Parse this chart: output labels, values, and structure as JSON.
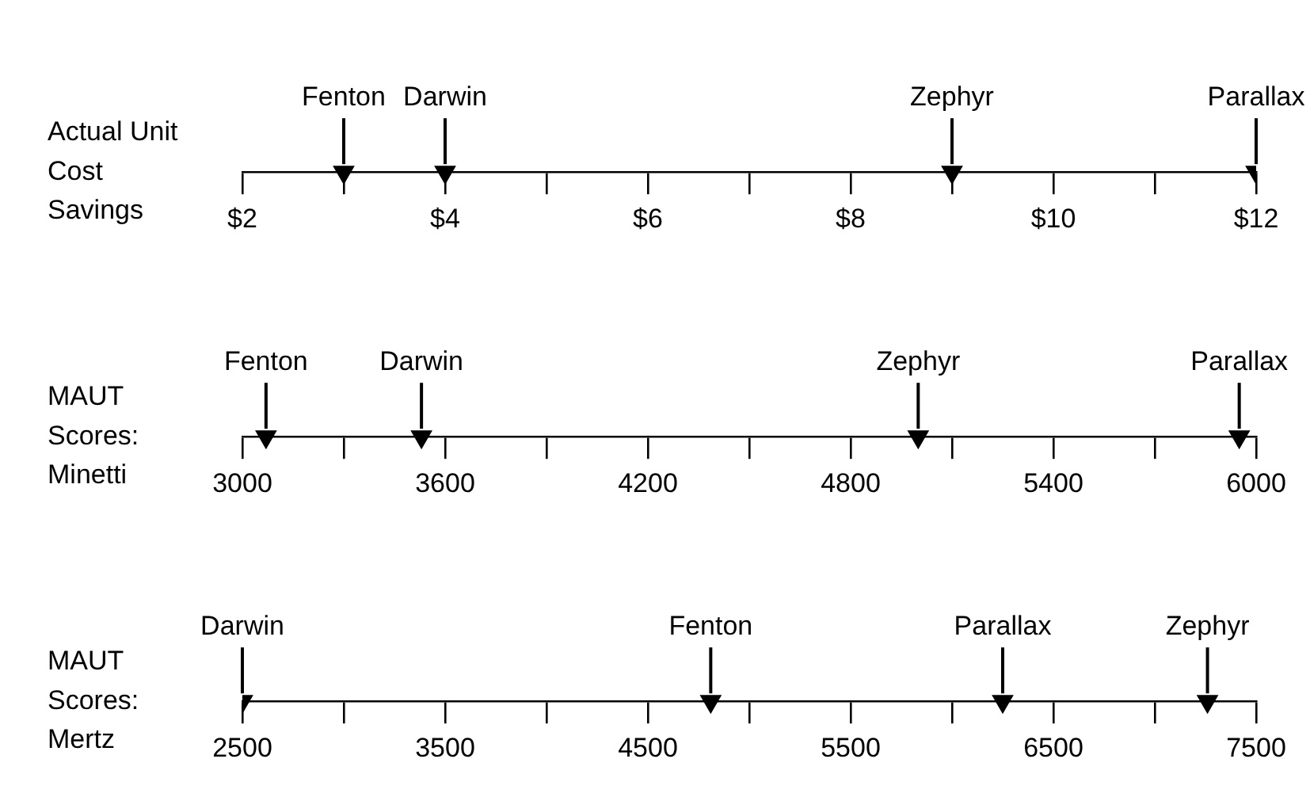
{
  "chart_data": [
    {
      "type": "scatter",
      "orientation": "horizontal",
      "categories": [
        "Actual Unit Cost Savings"
      ],
      "marker": "triangle",
      "legend": false,
      "xlim": [
        2,
        12
      ],
      "xticks": [
        {
          "value": 2,
          "label": "$2"
        },
        {
          "value": 3,
          "label": null
        },
        {
          "value": 4,
          "label": "$4"
        },
        {
          "value": 5,
          "label": null
        },
        {
          "value": 6,
          "label": "$6"
        },
        {
          "value": 7,
          "label": null
        },
        {
          "value": 8,
          "label": "$8"
        },
        {
          "value": 9,
          "label": null
        },
        {
          "value": 10,
          "label": "$10"
        },
        {
          "value": 11,
          "label": null
        },
        {
          "value": 12,
          "label": "$12"
        }
      ],
      "series": [
        {
          "name": "Fenton",
          "color": "#000000",
          "values": [
            3
          ]
        },
        {
          "name": "Darwin",
          "color": "#000000",
          "values": [
            4
          ]
        },
        {
          "name": "Zephyr",
          "color": "#000000",
          "values": [
            9
          ]
        },
        {
          "name": "Parallax",
          "color": "#000000",
          "values": [
            12
          ]
        }
      ]
    },
    {
      "type": "scatter",
      "orientation": "horizontal",
      "categories": [
        "MAUT Scores: Minetti"
      ],
      "marker": "triangle",
      "legend": false,
      "xlim": [
        3000,
        6000
      ],
      "xticks": [
        3000,
        {
          "value": 3300,
          "label": null
        },
        3600,
        {
          "value": 3900,
          "label": null
        },
        4200,
        {
          "value": 4500,
          "label": null
        },
        4800,
        {
          "value": 5100,
          "label": null
        },
        5400,
        {
          "value": 5700,
          "label": null
        },
        6000
      ],
      "series": [
        {
          "name": "Fenton",
          "color": "#000000",
          "values": [
            3070
          ]
        },
        {
          "name": "Darwin",
          "color": "#000000",
          "values": [
            3530
          ]
        },
        {
          "name": "Zephyr",
          "color": "#000000",
          "values": [
            5000
          ]
        },
        {
          "name": "Parallax",
          "color": "#000000",
          "values": [
            5950
          ]
        }
      ]
    },
    {
      "type": "scatter",
      "orientation": "horizontal",
      "categories": [
        "MAUT Scores: Mertz"
      ],
      "marker": "triangle",
      "legend": false,
      "xlim": [
        2500,
        7500
      ],
      "xticks": [
        2500,
        {
          "value": 3000,
          "label": null
        },
        3500,
        {
          "value": 4000,
          "label": null
        },
        4500,
        {
          "value": 5000,
          "label": null
        },
        5500,
        {
          "value": 6000,
          "label": null
        },
        6500,
        {
          "value": 7000,
          "label": null
        },
        7500
      ],
      "series": [
        {
          "name": "Darwin",
          "color": "#000000",
          "values": [
            2500
          ]
        },
        {
          "name": "Fenton",
          "color": "#000000",
          "values": [
            4810
          ]
        },
        {
          "name": "Parallax",
          "color": "#000000",
          "values": [
            6250
          ]
        },
        {
          "name": "Zephyr",
          "color": "#000000",
          "values": [
            7260
          ]
        }
      ]
    }
  ]
}
